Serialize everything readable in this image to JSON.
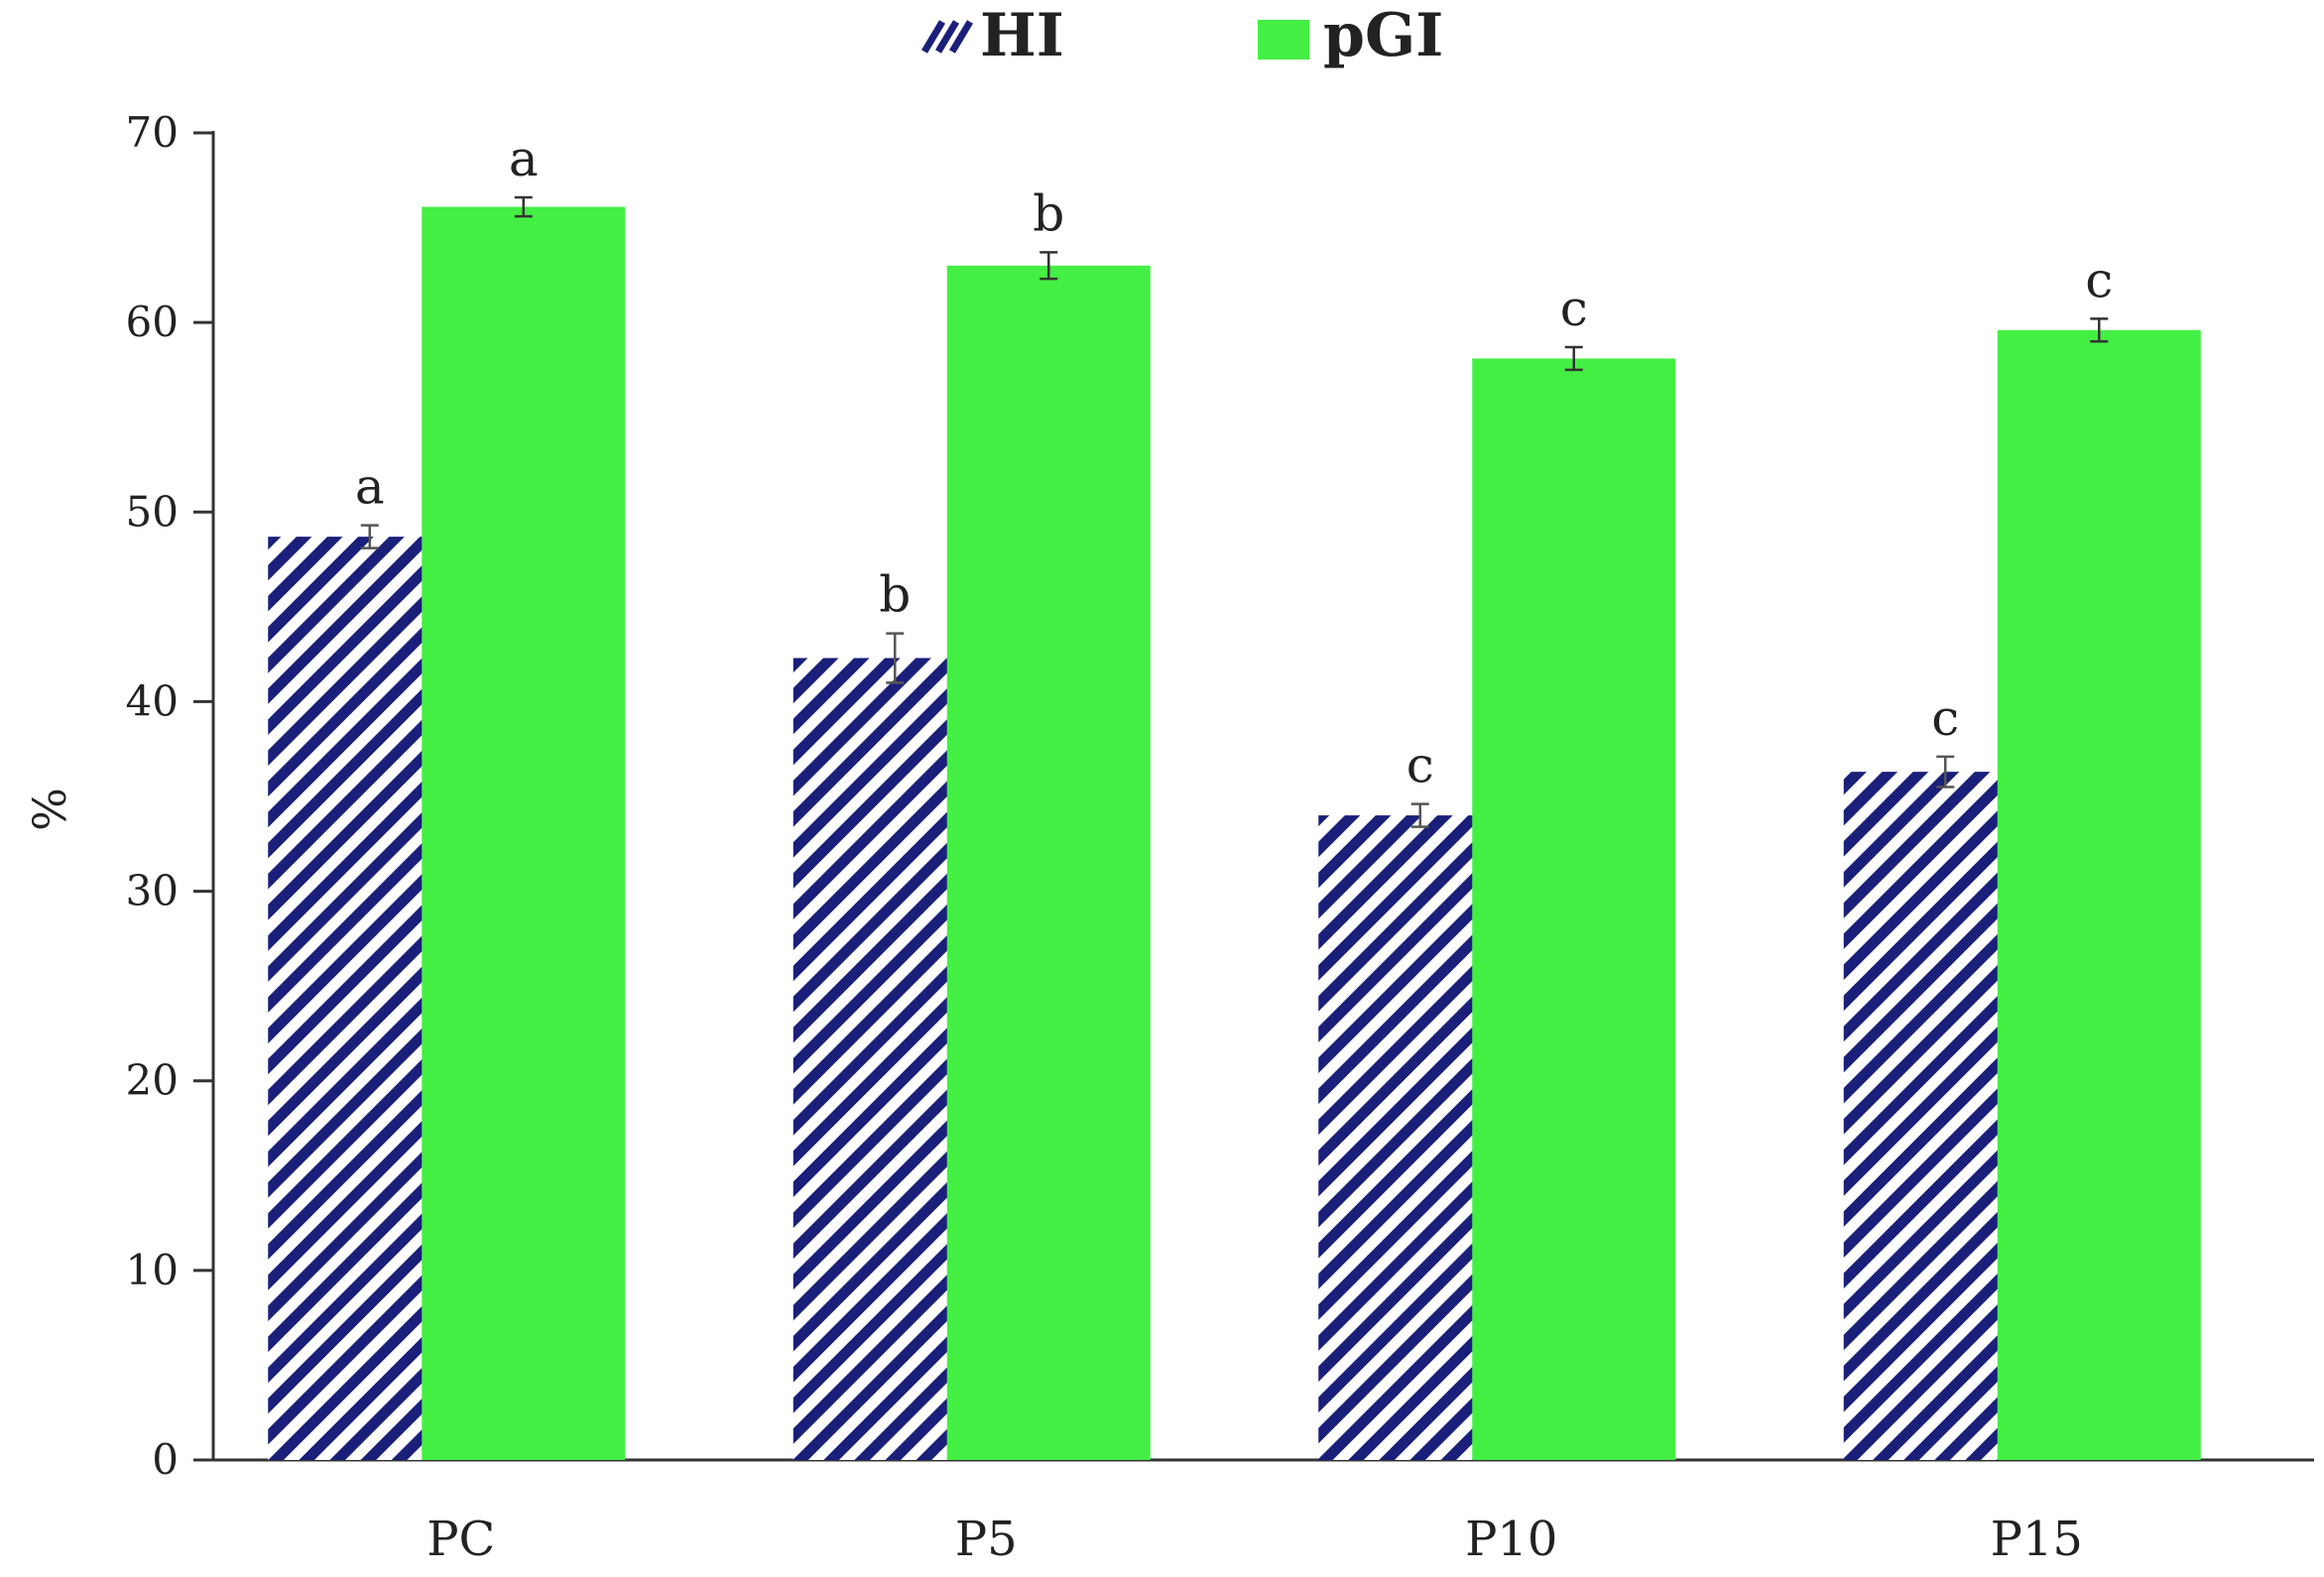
{
  "chart_data": {
    "type": "bar",
    "title": "",
    "xlabel": "",
    "ylabel": "%",
    "ylim": [
      0,
      70
    ],
    "yticks": [
      0,
      10,
      20,
      30,
      40,
      50,
      60,
      70
    ],
    "ytick_labels": [
      "0",
      "10",
      "20",
      "30",
      "40",
      "50",
      "60",
      "70"
    ],
    "grid": false,
    "legend_position": "top-center",
    "categories": [
      "PC",
      "P5",
      "P10",
      "P15"
    ],
    "series": [
      {
        "name": "HI",
        "pattern": "diagonal-hatch",
        "color": "#1a1f7a",
        "values": [
          48.7,
          42.3,
          34.0,
          36.3
        ],
        "errors": [
          0.6,
          1.3,
          0.6,
          0.8
        ],
        "significance": [
          "a",
          "b",
          "c",
          "c"
        ]
      },
      {
        "name": "pGI",
        "pattern": "solid",
        "color": "#44ef44",
        "values": [
          66.1,
          63.0,
          58.1,
          59.6
        ],
        "errors": [
          0.5,
          0.7,
          0.6,
          0.6
        ],
        "significance": [
          "a",
          "b",
          "c",
          "c"
        ]
      }
    ]
  }
}
